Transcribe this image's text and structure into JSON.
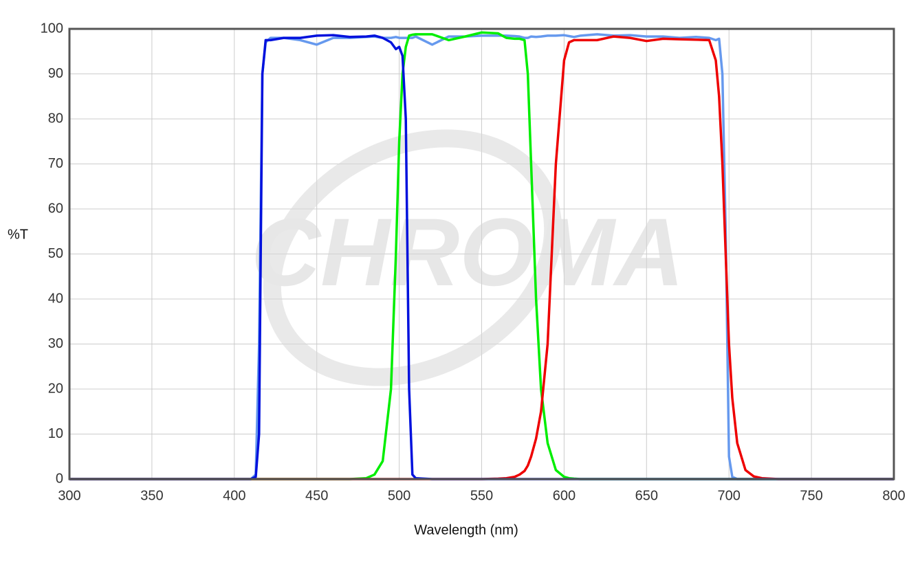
{
  "chart_data": {
    "type": "line",
    "watermark": "CHROMA",
    "xlabel": "Wavelength (nm)",
    "ylabel": "%T",
    "xlim": [
      300,
      800
    ],
    "ylim": [
      0,
      100
    ],
    "xticks": [
      300,
      350,
      400,
      450,
      500,
      550,
      600,
      650,
      700,
      750,
      800
    ],
    "yticks": [
      0,
      10,
      20,
      30,
      40,
      50,
      60,
      70,
      80,
      90,
      100
    ],
    "grid": true,
    "x": [
      300,
      350,
      400,
      410,
      413,
      415,
      417,
      419,
      422,
      430,
      440,
      450,
      460,
      470,
      480,
      485,
      490,
      495,
      498,
      500,
      502,
      504,
      506,
      508,
      510,
      520,
      530,
      540,
      550,
      560,
      565,
      570,
      573,
      576,
      578,
      580,
      583,
      586,
      590,
      595,
      600,
      603,
      606,
      610,
      620,
      630,
      640,
      650,
      660,
      670,
      680,
      688,
      692,
      694,
      696,
      698,
      700,
      702,
      705,
      710,
      715,
      720,
      730,
      750,
      800
    ],
    "series": [
      {
        "color": "#6699ee",
        "values": [
          0,
          0,
          0,
          0,
          1,
          30,
          90,
          97,
          98,
          98,
          97.5,
          96.5,
          98,
          98,
          98.2,
          98.3,
          98,
          98,
          98.2,
          98,
          98,
          98,
          98,
          98,
          98.3,
          96.5,
          98.3,
          98.3,
          98.5,
          98.5,
          98.5,
          98.4,
          98.3,
          98,
          98,
          98.3,
          98.2,
          98.3,
          98.5,
          98.5,
          98.6,
          98.4,
          98.2,
          98.5,
          98.8,
          98.5,
          98.6,
          98.3,
          98.3,
          98,
          98.2,
          98,
          97.5,
          97.8,
          90,
          55,
          5,
          0.5,
          0,
          0,
          0,
          0,
          0,
          0,
          0
        ]
      },
      {
        "color": "#00ee00",
        "values": [
          0,
          0,
          0,
          0,
          0,
          0,
          0,
          0,
          0,
          0,
          0,
          0,
          0,
          0,
          0.2,
          1,
          4,
          20,
          50,
          75,
          90,
          96,
          98.5,
          98.7,
          98.8,
          98.8,
          97.5,
          98.3,
          99.2,
          99,
          98,
          97.8,
          97.8,
          97.5,
          90,
          70,
          40,
          20,
          8,
          2,
          0.5,
          0.2,
          0.1,
          0,
          0,
          0,
          0,
          0,
          0,
          0,
          0,
          0,
          0,
          0,
          0,
          0,
          0,
          0,
          0,
          0,
          0,
          0,
          0,
          0,
          0
        ]
      },
      {
        "color": "#ee0000",
        "values": [
          0,
          0,
          0,
          0,
          0,
          0,
          0,
          0,
          0,
          0,
          0,
          0,
          0,
          0,
          0,
          0,
          0,
          0,
          0,
          0,
          0,
          0,
          0,
          0,
          0,
          0,
          0,
          0,
          0,
          0.1,
          0.2,
          0.5,
          1,
          1.8,
          3,
          5,
          9,
          15,
          30,
          70,
          93,
          97,
          97.5,
          97.5,
          97.5,
          98.3,
          98,
          97.3,
          97.8,
          97.7,
          97.6,
          97.5,
          93,
          85,
          70,
          50,
          30,
          18,
          8,
          2,
          0.6,
          0.2,
          0,
          0,
          0
        ]
      },
      {
        "color": "#0011dd",
        "values": [
          0,
          0,
          0,
          0,
          0.5,
          10,
          90,
          97.5,
          97.5,
          98,
          98,
          98.5,
          98.6,
          98.2,
          98.3,
          98.5,
          98,
          97,
          95.5,
          96,
          94,
          80,
          20,
          1,
          0.2,
          0,
          0,
          0,
          0,
          0,
          0,
          0,
          0,
          0,
          0,
          0,
          0,
          0,
          0,
          0,
          0,
          0,
          0,
          0,
          0,
          0,
          0,
          0,
          0,
          0,
          0,
          0,
          0,
          0,
          0,
          0,
          0,
          0,
          0,
          0,
          0,
          0,
          0,
          0,
          0
        ]
      }
    ]
  }
}
